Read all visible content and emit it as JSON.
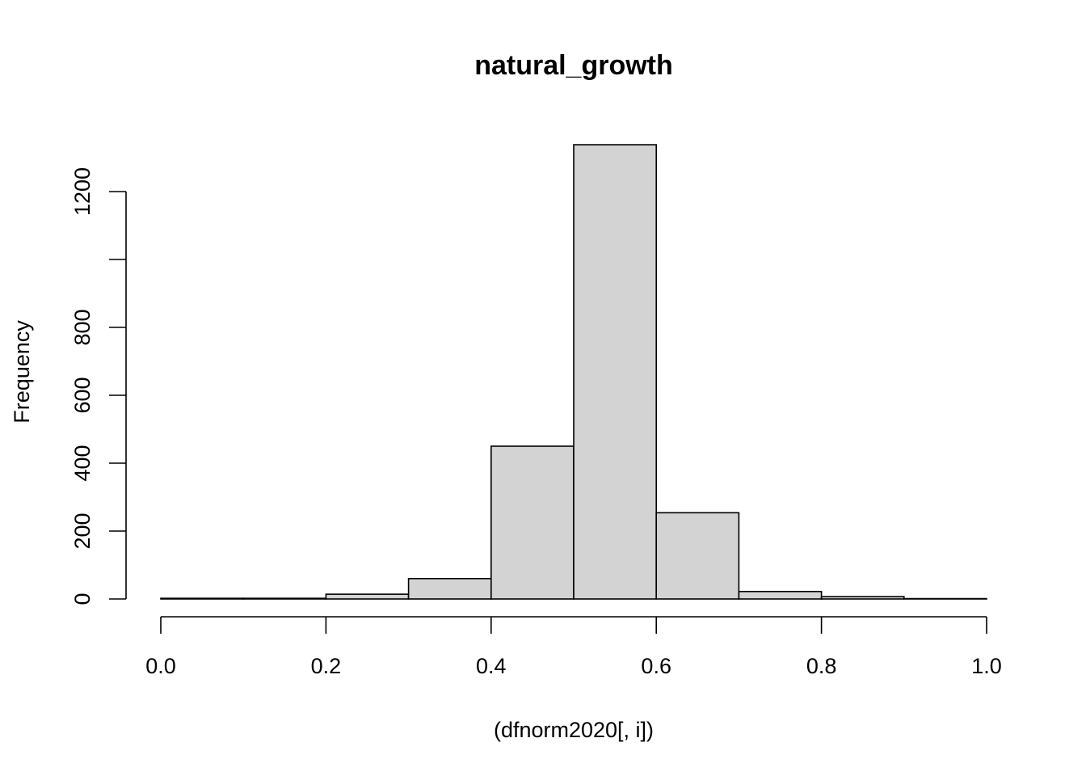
{
  "chart_data": {
    "type": "bar",
    "title": "natural_growth",
    "xlabel": "(dfnorm2020[, i])",
    "ylabel": "Frequency",
    "bins": [
      {
        "from": 0.0,
        "to": 0.1,
        "count": 2
      },
      {
        "from": 0.1,
        "to": 0.2,
        "count": 2
      },
      {
        "from": 0.2,
        "to": 0.3,
        "count": 14
      },
      {
        "from": 0.3,
        "to": 0.4,
        "count": 60
      },
      {
        "from": 0.4,
        "to": 0.5,
        "count": 450
      },
      {
        "from": 0.5,
        "to": 0.6,
        "count": 1338
      },
      {
        "from": 0.6,
        "to": 0.7,
        "count": 254
      },
      {
        "from": 0.7,
        "to": 0.8,
        "count": 22
      },
      {
        "from": 0.8,
        "to": 0.9,
        "count": 7
      },
      {
        "from": 0.9,
        "to": 1.0,
        "count": 1
      }
    ],
    "xlim": [
      0,
      1
    ],
    "ylim": [
      0,
      1338
    ],
    "x_ticks": [
      "0.0",
      "0.2",
      "0.4",
      "0.6",
      "0.8",
      "1.0"
    ],
    "y_ticks": [
      "0",
      "200",
      "400",
      "600",
      "800",
      "",
      "1200"
    ],
    "grid": false,
    "colors": {
      "bar_fill": "#d3d3d3",
      "bar_stroke": "#000000"
    }
  }
}
